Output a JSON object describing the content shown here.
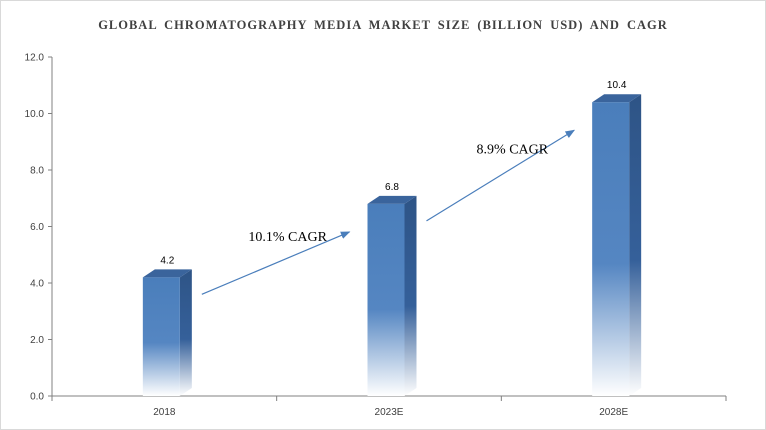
{
  "chart_data": {
    "type": "bar",
    "title": "GLOBAL CHROMATOGRAPHY  MEDIA  MARKET  SIZE  (BILLION USD) AND CAGR",
    "categories": [
      "2018",
      "2023E",
      "2028E"
    ],
    "values": [
      4.2,
      6.8,
      10.4
    ],
    "data_labels": [
      "4.2",
      "6.8",
      "10.4"
    ],
    "ylim": [
      0,
      12
    ],
    "yticks": [
      0,
      2,
      4,
      6,
      8,
      10,
      12
    ],
    "ytick_labels": [
      "0.0",
      "2.0",
      "4.0",
      "6.0",
      "8.0",
      "10.0",
      "12.0"
    ],
    "xlabel": "",
    "ylabel": "",
    "grid": false,
    "bar_style": "3d-gradient",
    "bar_color": "#4a7ebb",
    "annotations": [
      {
        "text": "10.1% CAGR",
        "from_category": "2018",
        "to_category": "2023E"
      },
      {
        "text": "8.9% CAGR",
        "from_category": "2023E",
        "to_category": "2028E"
      }
    ]
  }
}
